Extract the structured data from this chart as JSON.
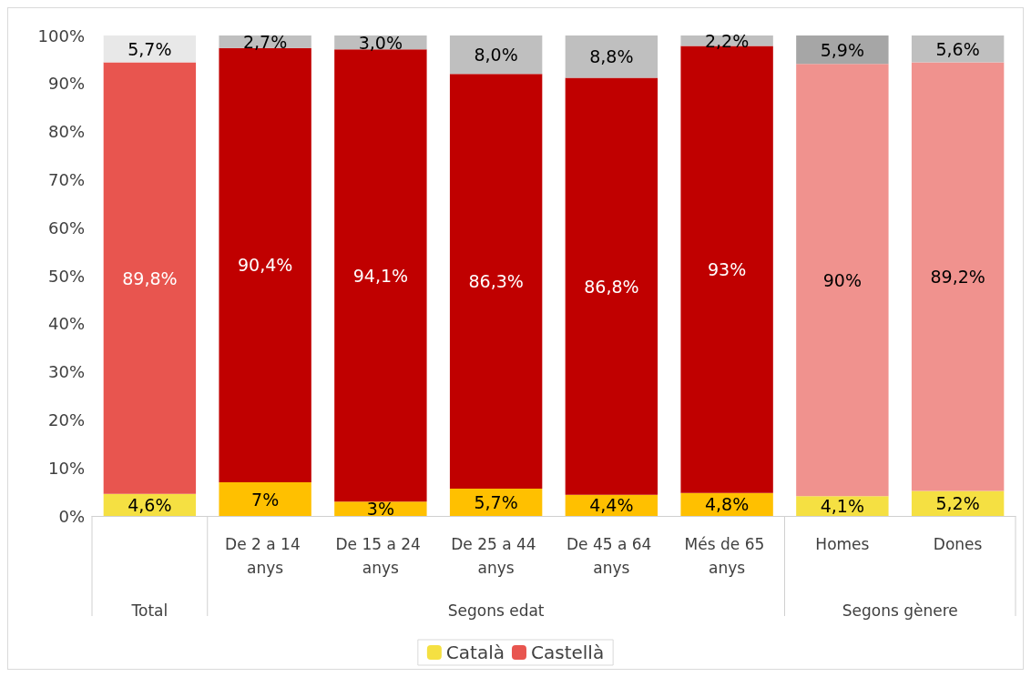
{
  "chart_data": {
    "type": "bar",
    "stacked": true,
    "categories": [
      null,
      "De 2 a 14 anys",
      "De 15 a 24 anys",
      "De 25 a 44 anys",
      "De 45 a 64 anys",
      "Més de 65 anys",
      "Homes",
      "Dones"
    ],
    "series": [
      {
        "name": "Català",
        "color": "#f5e042",
        "colors": [
          "#f5e042",
          "#ffc000",
          "#ffc000",
          "#ffc000",
          "#ffc000",
          "#ffc000",
          "#f5e042",
          "#f5e042"
        ],
        "values": [
          4.6,
          7,
          3,
          5.7,
          4.4,
          4.8,
          4.1,
          5.2
        ],
        "value_labels": [
          "4,6%",
          "7%",
          "3%",
          "5,7%",
          "4,4%",
          "4,8%",
          "4,1%",
          "5,2%"
        ]
      },
      {
        "name": "Castellà",
        "color": "#e8554f",
        "colors": [
          "#e8554f",
          "#c00000",
          "#c00000",
          "#c00000",
          "#c00000",
          "#c00000",
          "#f0928e",
          "#f0928e"
        ],
        "values": [
          89.8,
          90.4,
          94.1,
          86.3,
          86.8,
          93,
          90,
          89.2
        ],
        "value_labels": [
          "89,8%",
          "90,4%",
          "94,1%",
          "86,3%",
          "86,8%",
          "93%",
          "90%",
          "89,2%"
        ]
      },
      {
        "color": "#bfbfbf",
        "colors": [
          "#e8e8e8",
          "#bfbfbf",
          "#bfbfbf",
          "#bfbfbf",
          "#bfbfbf",
          "#bfbfbf",
          "#a6a6a6",
          "#bfbfbf"
        ],
        "values": [
          5.7,
          2.7,
          3.0,
          8.0,
          8.8,
          2.2,
          5.9,
          5.6
        ],
        "value_labels": [
          "5,7%",
          "2,7%",
          "3,0%",
          "8,0%",
          "8,8%",
          "2,2%",
          "5,9%",
          "5,6%"
        ]
      }
    ],
    "annotations": [
      "Total",
      "Segons edat",
      "Segons gènere"
    ],
    "ylim": [
      0,
      100
    ],
    "yticks": [
      {
        "value": 0,
        "label": "0%"
      },
      {
        "value": 10,
        "label": "10%"
      },
      {
        "value": 20,
        "label": "20%"
      },
      {
        "value": 30,
        "label": "30%"
      },
      {
        "value": 40,
        "label": "40%"
      },
      {
        "value": 50,
        "label": "50%"
      },
      {
        "value": 60,
        "label": "60%"
      },
      {
        "value": 70,
        "label": "70%"
      },
      {
        "value": 80,
        "label": "80%"
      },
      {
        "value": 90,
        "label": "90%"
      },
      {
        "value": 100,
        "label": "100%"
      }
    ],
    "grid": false,
    "legend": "bottom"
  }
}
